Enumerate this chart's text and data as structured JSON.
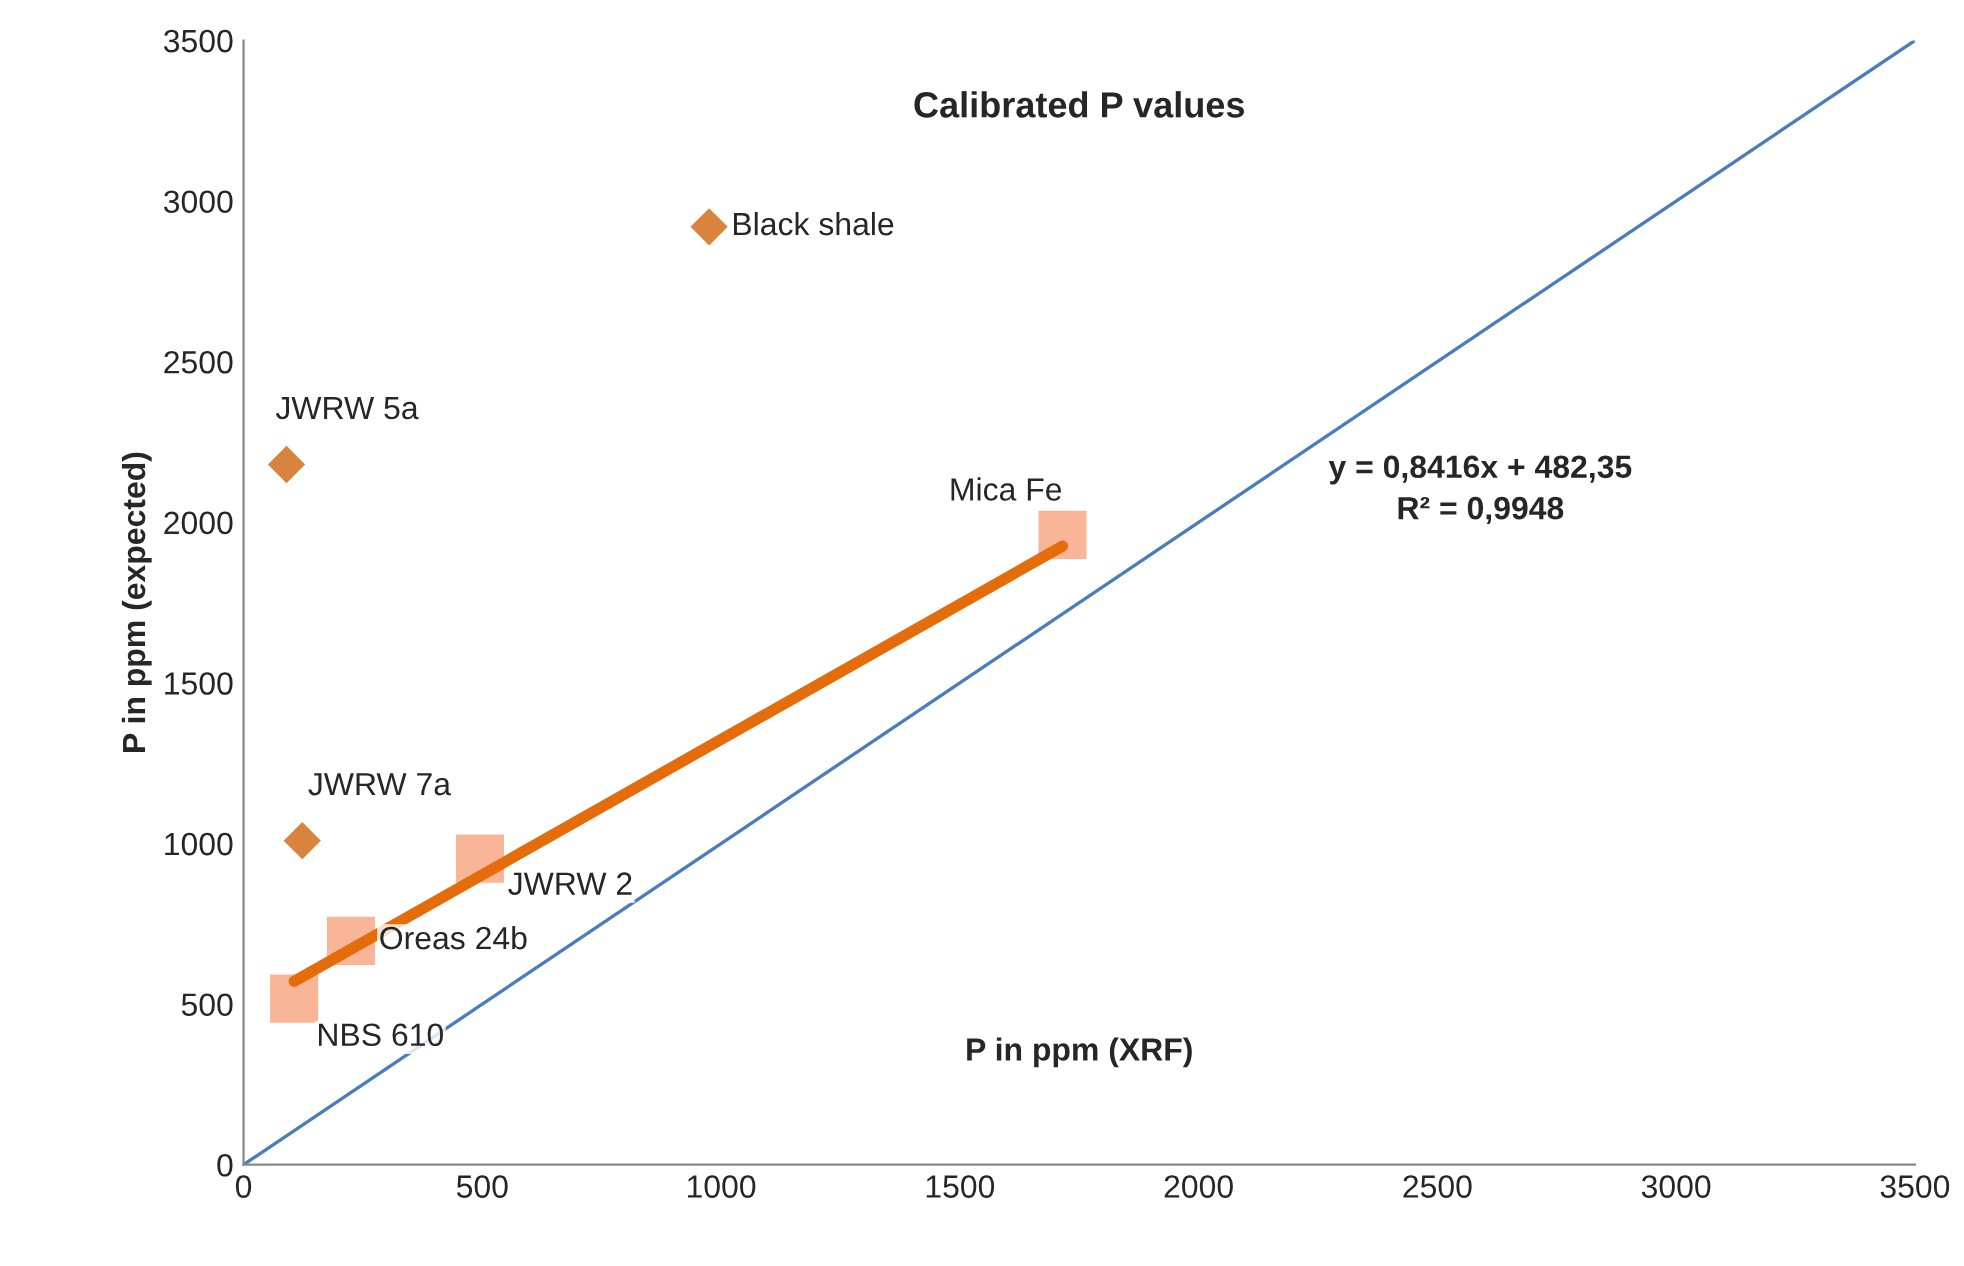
{
  "chart_data": {
    "type": "scatter",
    "title": "Calibrated P values",
    "xlabel": "P in ppm (XRF)",
    "ylabel": "P in ppm (expected)",
    "xlim": [
      0,
      3500
    ],
    "ylim": [
      0,
      3500
    ],
    "xticks": [
      0,
      500,
      1000,
      1500,
      2000,
      2500,
      3000,
      3500
    ],
    "yticks": [
      0,
      500,
      1000,
      1500,
      2000,
      2500,
      3000,
      3500
    ],
    "grid": false,
    "series": [
      {
        "type": "line",
        "color": "#4a7ebb",
        "x": [
          0,
          3500
        ],
        "values": [
          0,
          3500
        ],
        "marker": "none"
      },
      {
        "type": "line",
        "color": "#e46c0a",
        "x": [
          106,
          1715
        ],
        "values": [
          571,
          1926
        ],
        "marker": "none"
      },
      {
        "color": "#d9843e",
        "marker": "diamond",
        "x": [
          975,
          90,
          123
        ],
        "values": [
          2920,
          2180,
          1009
        ]
      },
      {
        "color": "#f8b597",
        "marker": "square",
        "x": [
          1715,
          495,
          225,
          106
        ],
        "values": [
          1961,
          953,
          697,
          517
        ]
      }
    ],
    "annotations": [
      {
        "text": "Black shale",
        "x": 975,
        "y": 2920
      },
      {
        "text": "JWRW 5a",
        "x": 90,
        "y": 2180
      },
      {
        "text": "JWRW 7a",
        "x": 123,
        "y": 1009
      },
      {
        "text": "Mica Fe",
        "x": 1715,
        "y": 1961
      },
      {
        "text": "JWRW 2",
        "x": 495,
        "y": 953
      },
      {
        "text": "Oreas 24b",
        "x": 225,
        "y": 697
      },
      {
        "text": "NBS 610",
        "x": 106,
        "y": 517
      },
      "y = 0,8416x + 482,35\nR² = 0,9948"
    ]
  }
}
